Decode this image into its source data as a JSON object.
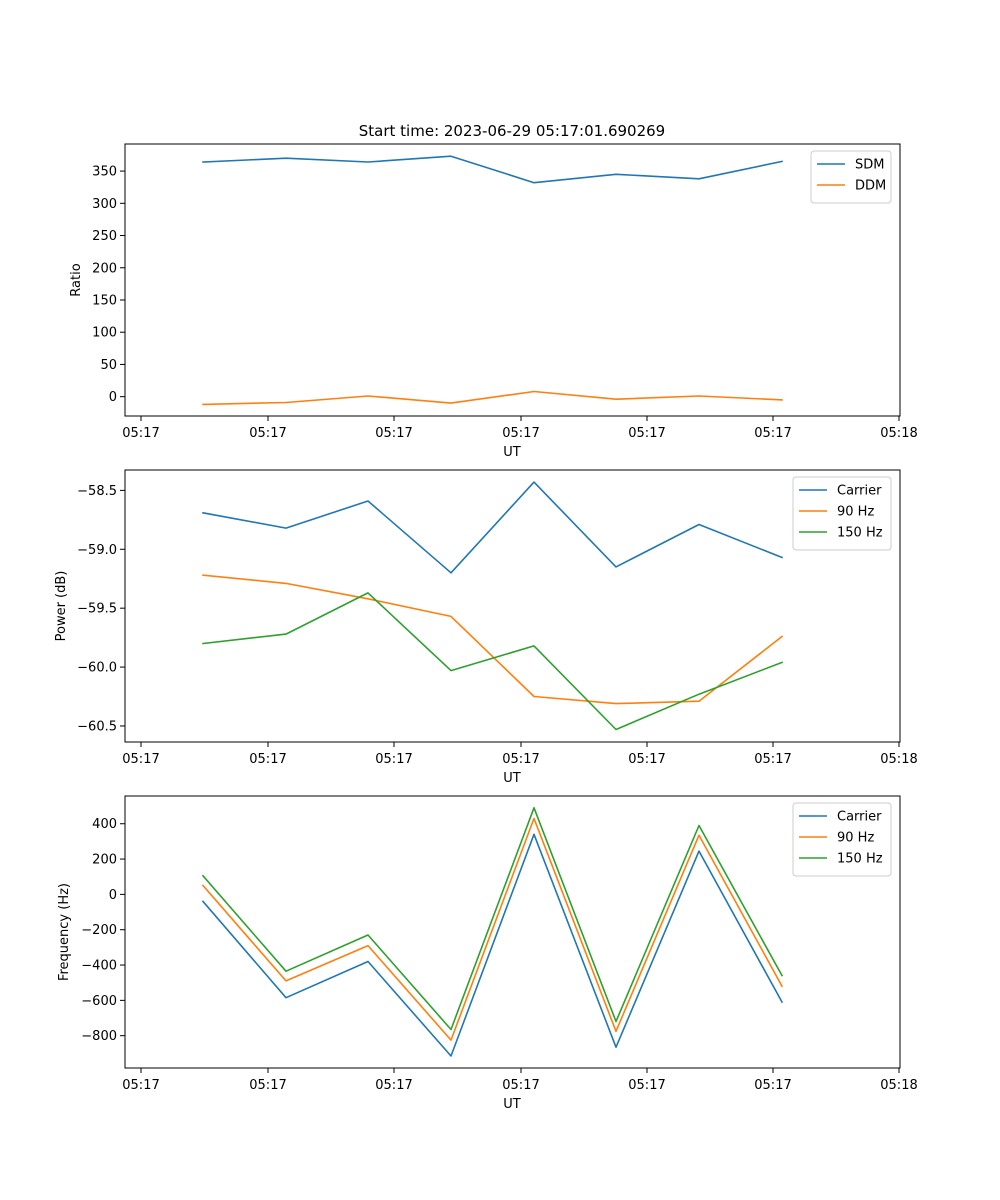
{
  "figure_title": "Start time: 2023-06-29 05:17:01.690269",
  "colors": {
    "blue": "#1f77b4",
    "orange": "#ff7f0e",
    "green": "#2ca02c"
  },
  "chart_data": [
    {
      "type": "line",
      "title": "Start time: 2023-06-29 05:17:01.690269",
      "xlabel": "UT",
      "ylabel": "Ratio",
      "xticks": [
        "05:17",
        "05:17",
        "05:17",
        "05:17",
        "05:17",
        "05:17",
        "05:17",
        "05:18"
      ],
      "ylim": [
        -30,
        392
      ],
      "yticks": [
        0,
        50,
        100,
        150,
        200,
        250,
        300,
        350
      ],
      "ytick_labels": [
        "0",
        "50",
        "100",
        "150",
        "200",
        "250",
        "300",
        "350"
      ],
      "legend": "top-right",
      "series": [
        {
          "name": "SDM",
          "color": "#1f77b4",
          "values": [
            364,
            370,
            364,
            373,
            332,
            345,
            338,
            365
          ]
        },
        {
          "name": "DDM",
          "color": "#ff7f0e",
          "values": [
            -12,
            -9,
            1,
            -10,
            8,
            -4,
            1,
            -5
          ]
        }
      ]
    },
    {
      "type": "line",
      "xlabel": "UT",
      "ylabel": "Power (dB)",
      "xticks": [
        "05:17",
        "05:17",
        "05:17",
        "05:17",
        "05:17",
        "05:17",
        "05:17",
        "05:18"
      ],
      "ylim": [
        -60.636,
        -58.327
      ],
      "yticks": [
        -60.5,
        -60.0,
        -59.5,
        -59.0,
        -58.5
      ],
      "ytick_labels": [
        "−60.5",
        "−60.0",
        "−59.5",
        "−59.0",
        "−58.5"
      ],
      "legend": "top-right",
      "series": [
        {
          "name": "Carrier",
          "color": "#1f77b4",
          "values": [
            -58.69,
            -58.82,
            -58.59,
            -59.2,
            -58.43,
            -59.15,
            -58.79,
            -59.07
          ]
        },
        {
          "name": "90 Hz",
          "color": "#ff7f0e",
          "values": [
            -59.22,
            -59.29,
            -59.42,
            -59.57,
            -60.25,
            -60.31,
            -60.29,
            -59.74
          ]
        },
        {
          "name": "150 Hz",
          "color": "#2ca02c",
          "values": [
            -59.8,
            -59.72,
            -59.37,
            -60.03,
            -59.82,
            -60.53,
            -60.23,
            -59.96
          ]
        }
      ]
    },
    {
      "type": "line",
      "xlabel": "UT",
      "ylabel": "Frequency (Hz)",
      "xticks": [
        "05:17",
        "05:17",
        "05:17",
        "05:17",
        "05:17",
        "05:17",
        "05:17",
        "05:18"
      ],
      "ylim": [
        -983,
        557
      ],
      "yticks": [
        -800,
        -600,
        -400,
        -200,
        0,
        200,
        400
      ],
      "ytick_labels": [
        "−800",
        "−600",
        "−400",
        "−200",
        "0",
        "200",
        "400"
      ],
      "legend": "top-right",
      "series": [
        {
          "name": "Carrier",
          "color": "#1f77b4",
          "values": [
            -40,
            -585,
            -380,
            -915,
            340,
            -865,
            245,
            -610
          ]
        },
        {
          "name": "90 Hz",
          "color": "#ff7f0e",
          "values": [
            50,
            -490,
            -290,
            -825,
            430,
            -775,
            335,
            -520
          ]
        },
        {
          "name": "150 Hz",
          "color": "#2ca02c",
          "values": [
            105,
            -435,
            -230,
            -765,
            490,
            -720,
            390,
            -460
          ]
        }
      ]
    }
  ]
}
